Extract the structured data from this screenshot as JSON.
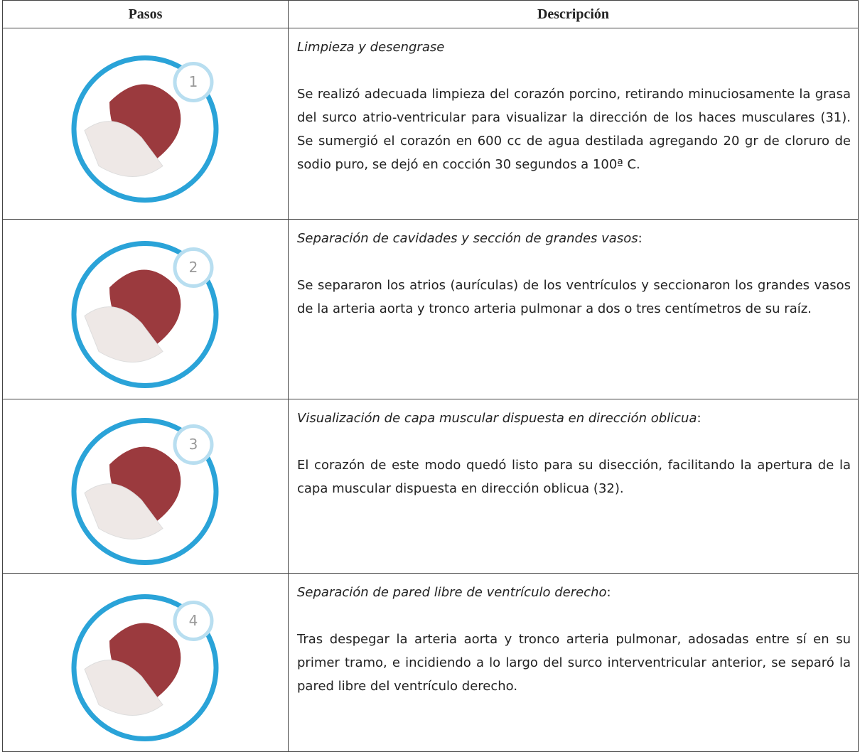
{
  "table": {
    "header": [
      "Pasos",
      "Descripción"
    ],
    "rows": [
      {
        "step": "1",
        "title": "Limpieza y desengrase",
        "text": "Se realizó adecuada limpieza del corazón porcino, retirando minuciosamente la grasa del surco atrio-ventricular para visualizar la dirección de los haces musculares (31). Se sumergió el corazón en 600 cc de agua destilada agregando 20 gr de cloruro de sodio puro, se dejó en cocción 30 segundos a 100ª C."
      },
      {
        "step": "2",
        "title": "Separación de cavidades y sección de grandes vasos",
        "suffix": ":",
        "text": "Se separaron los atrios (aurículas) de los ventrículos y seccionaron los grandes vasos de la arteria aorta y tronco arteria pulmonar a dos o tres centímetros de su raíz."
      },
      {
        "step": "3",
        "title": "Visualización de capa muscular dispuesta en dirección oblicua",
        "suffix": ":",
        "text": "El corazón de este modo quedó listo para su disección, facilitando la apertura de la capa muscular dispuesta en dirección oblicua (32)."
      },
      {
        "step": "4",
        "title": "Separación de pared libre de ventrículo derecho",
        "suffix": ":",
        "text": "Tras despegar la arteria aorta y tronco arteria pulmonar, adosadas entre sí en su primer tramo, e incidiendo a lo largo del surco interventricular anterior, se separó la pared libre del ventrículo derecho."
      }
    ]
  }
}
